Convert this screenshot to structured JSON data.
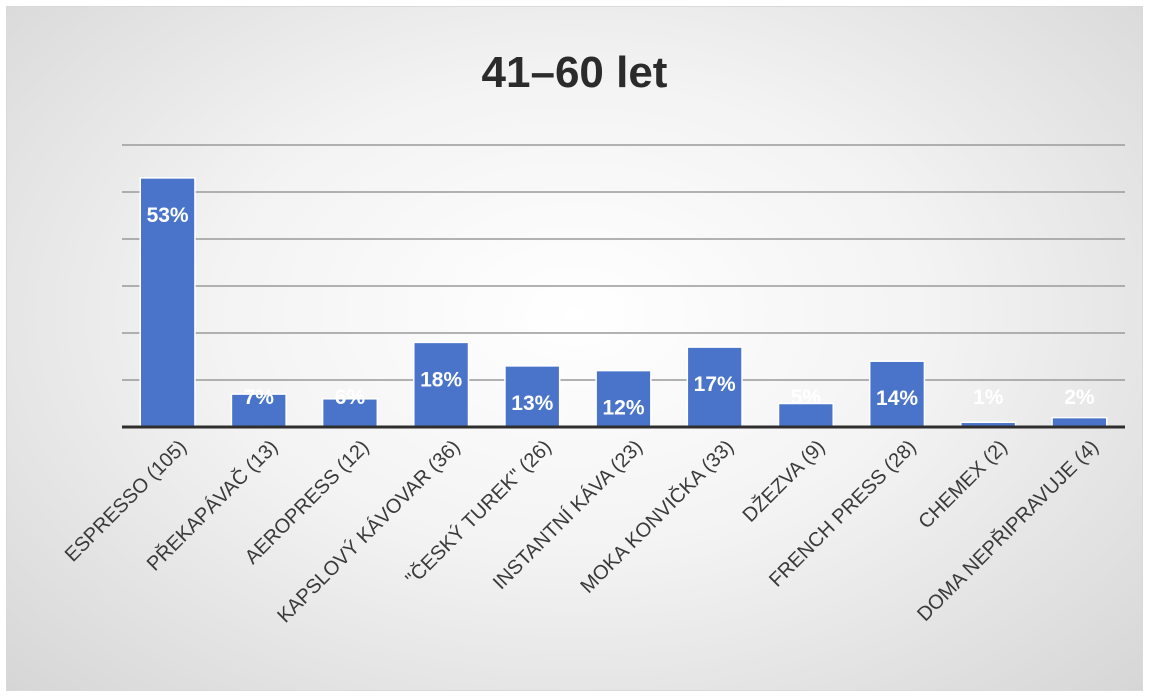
{
  "chart_data": {
    "type": "bar",
    "title": "41–60 let",
    "xlabel": "",
    "ylabel": "",
    "categories": [
      "ESPRESSO (105)",
      "PŘEKAPÁVAČ (13)",
      "AEROPRESS (12)",
      "KAPSLOVÝ KÁVOVAR (36)",
      "\"ČESKÝ TUREK\" (26)",
      "INSTANTNÍ KÁVA (23)",
      "MOKA KONVIČKA (33)",
      "DŽEZVA (9)",
      "FRENCH PRESS (28)",
      "CHEMEX (2)",
      "DOMA NEPŘIPRAVUJE (4)"
    ],
    "values": [
      53,
      7,
      6,
      18,
      13,
      12,
      17,
      5,
      14,
      1,
      2
    ],
    "data_labels": [
      "53%",
      "7%",
      "6%",
      "18%",
      "13%",
      "12%",
      "17%",
      "5%",
      "14%",
      "1%",
      "2%"
    ],
    "ylim": [
      0,
      60
    ],
    "gridlines": [
      0,
      10,
      20,
      30,
      40,
      50,
      60
    ],
    "grid": true,
    "legend": "none",
    "colors": {
      "bar": "#4a74c9",
      "label": "#ffffff",
      "grid": "#9a9a9a"
    }
  }
}
